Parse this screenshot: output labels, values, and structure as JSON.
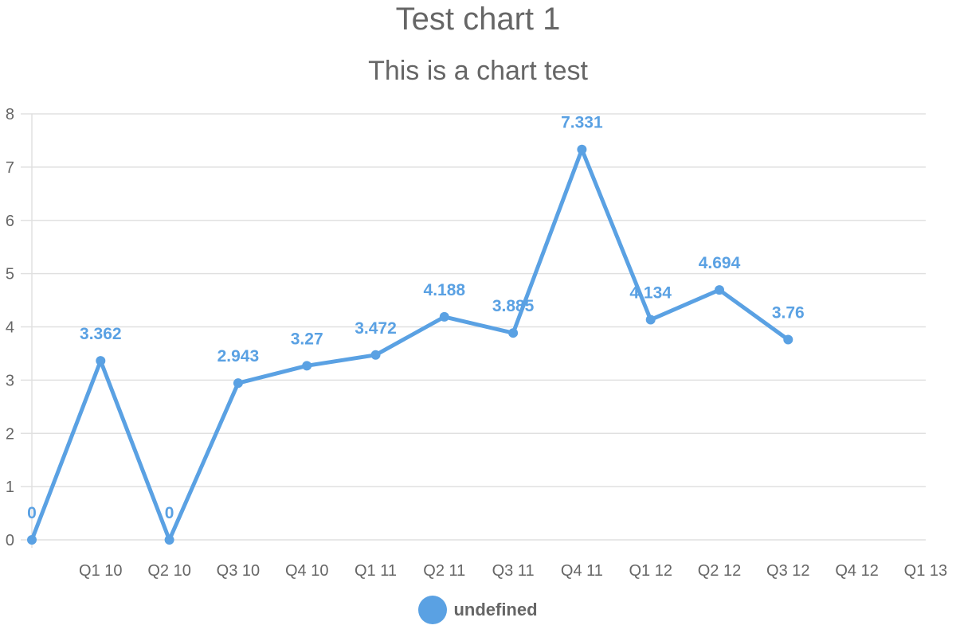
{
  "colors": {
    "series": "#5aa1e3",
    "grid": "#e0e0e0",
    "text": "#666666"
  },
  "chart_data": {
    "type": "line",
    "title": "Test chart 1",
    "subtitle": "This is a chart test",
    "categories": [
      "",
      "Q1 10",
      "Q2 10",
      "Q3 10",
      "Q4 10",
      "Q1 11",
      "Q2 11",
      "Q3 11",
      "Q4 11",
      "Q1 12",
      "Q2 12",
      "Q3 12",
      "Q4 12",
      "Q1 13"
    ],
    "series": [
      {
        "name": "undefined",
        "values": [
          0,
          3.362,
          0,
          2.943,
          3.27,
          3.472,
          4.188,
          3.885,
          7.331,
          4.134,
          4.694,
          3.76,
          null,
          null
        ]
      }
    ],
    "ylim": [
      0,
      8
    ],
    "yticks": [
      0,
      1,
      2,
      3,
      4,
      5,
      6,
      7,
      8
    ],
    "grid": true,
    "legend_position": "bottom"
  }
}
